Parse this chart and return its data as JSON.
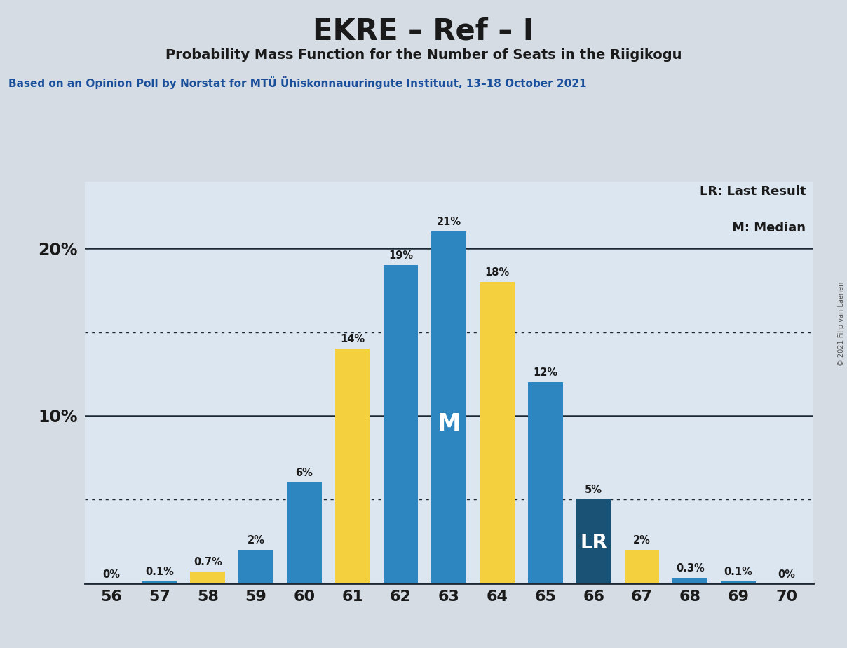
{
  "title": "EKRE – Ref – I",
  "subtitle": "Probability Mass Function for the Number of Seats in the Riigikogu",
  "source_text": "Based on an Opinion Poll by Norstat for MTÜ Ühiskonnauuringute Instituut, 13–18 October 2021",
  "copyright_text": "© 2021 Filip van Laenen",
  "legend_lr": "LR: Last Result",
  "legend_m": "M: Median",
  "seats": [
    56,
    57,
    58,
    59,
    60,
    61,
    62,
    63,
    64,
    65,
    66,
    67,
    68,
    69,
    70
  ],
  "seat_values": [
    0.0,
    0.1,
    0.7,
    2.0,
    6.0,
    14.0,
    19.0,
    21.0,
    18.0,
    12.0,
    5.0,
    2.0,
    0.3,
    0.1,
    0.0
  ],
  "seat_colors": [
    "blue",
    "blue",
    "yellow",
    "blue",
    "blue",
    "yellow",
    "blue",
    "blue",
    "yellow",
    "blue",
    "dark_blue",
    "yellow",
    "blue",
    "blue",
    "blue"
  ],
  "seat_labels": [
    "0%",
    "0.1%",
    "0.7%",
    "2%",
    "6%",
    "14%",
    "19%",
    "21%",
    "18%",
    "12%",
    "5%",
    "2%",
    "0.3%",
    "0.1%",
    "0%"
  ],
  "blue_color": "#2e86c1",
  "dark_blue_color": "#1a5276",
  "yellow_color": "#f4d03f",
  "background_color": "#d5dce4",
  "plot_bg_color": "#dce6f1",
  "median_seat": 63,
  "lr_seat": 66,
  "ylim": [
    0,
    24
  ],
  "dotted_lines": [
    5.0,
    15.0
  ],
  "solid_lines": [
    10.0,
    20.0
  ],
  "ytick_positions": [
    10,
    20
  ],
  "ytick_labels": [
    "10%",
    "20%"
  ]
}
